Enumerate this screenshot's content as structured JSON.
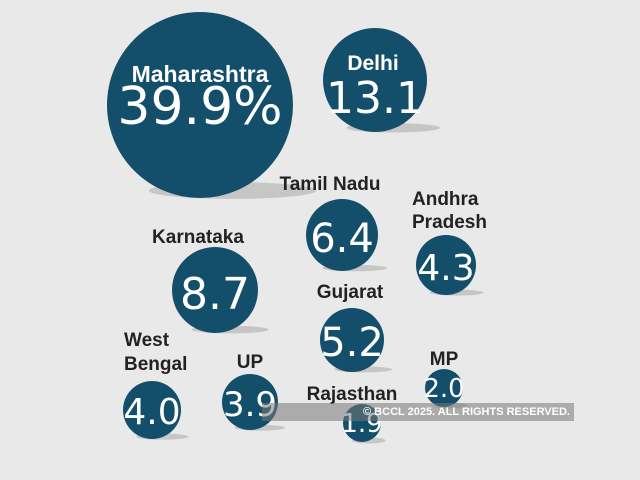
{
  "colors": {
    "bubble": "#134f6b",
    "shadow": "#c6c6c7",
    "background": "#e9e9ea"
  },
  "chart_data": {
    "type": "bubble",
    "title": "",
    "bubbles": [
      {
        "name": "Maharashtra",
        "value": 39.9,
        "display": "39.9%",
        "label_inside": true
      },
      {
        "name": "Delhi",
        "value": 13.1,
        "display": "13.1",
        "label_inside": true
      },
      {
        "name": "Tamil Nadu",
        "value": 6.4,
        "display": "6.4",
        "label_inside": false
      },
      {
        "name": "Andhra Pradesh",
        "value": 4.3,
        "display": "4.3",
        "label_inside": false
      },
      {
        "name": "Karnataka",
        "value": 8.7,
        "display": "8.7",
        "label_inside": false
      },
      {
        "name": "Gujarat",
        "value": 5.2,
        "display": "5.2",
        "label_inside": false
      },
      {
        "name": "West Bengal",
        "value": 4.0,
        "display": "4.0",
        "label_inside": false
      },
      {
        "name": "UP",
        "value": 3.9,
        "display": "3.9",
        "label_inside": false
      },
      {
        "name": "Rajasthan",
        "value": 1.9,
        "display": "1.9",
        "label_inside": false
      },
      {
        "name": "MP",
        "value": 2.0,
        "display": "2.0",
        "label_inside": false
      }
    ]
  },
  "watermark": "© BCCL 2025. ALL RIGHTS RESERVED."
}
